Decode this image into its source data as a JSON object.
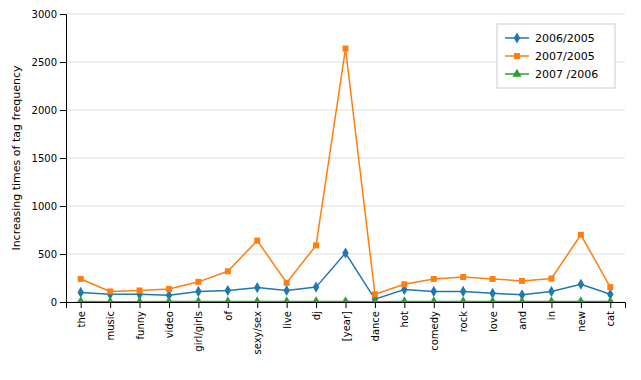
{
  "chart_data": {
    "type": "line",
    "categories": [
      "the",
      "music",
      "funny",
      "video",
      "girl/girls",
      "of",
      "sexy/sex",
      "live",
      "dj",
      "[year]",
      "dance",
      "hot",
      "comedy",
      "rock",
      "love",
      "and",
      "in",
      "new",
      "cat"
    ],
    "series": [
      {
        "name": "2006/2005",
        "marker": "diamond",
        "values": [
          100,
          80,
          80,
          70,
          110,
          120,
          150,
          120,
          155,
          510,
          30,
          130,
          110,
          110,
          90,
          75,
          110,
          185,
          80
        ]
      },
      {
        "name": "2007/2005",
        "marker": "square",
        "values": [
          240,
          110,
          120,
          135,
          210,
          320,
          640,
          200,
          590,
          2640,
          80,
          185,
          240,
          260,
          240,
          220,
          245,
          700,
          155
        ]
      },
      {
        "name": "2007 /2006",
        "marker": "triangle",
        "values": [
          5,
          3,
          3,
          4,
          4,
          4,
          5,
          5,
          6,
          6,
          3,
          5,
          4,
          5,
          4,
          4,
          4,
          5,
          4
        ]
      }
    ],
    "y_label": "Increasing times of tag frequency",
    "ylim": [
      0,
      3000
    ],
    "yticks": [
      0,
      500,
      1000,
      1500,
      2000,
      2500,
      3000
    ],
    "grid": true,
    "legend": "upper right"
  }
}
